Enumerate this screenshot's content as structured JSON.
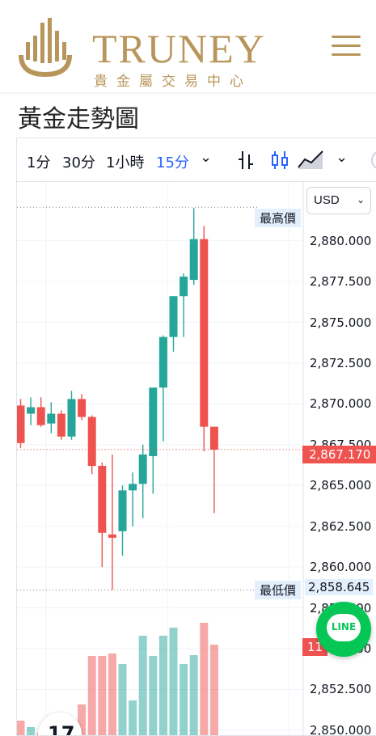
{
  "header": {
    "brand": "TRUNEY",
    "brand_sub": "貴金屬交易中心"
  },
  "page": {
    "title": "黃金走勢圖"
  },
  "toolbar": {
    "timeframes": [
      "1分",
      "30分",
      "1小時",
      "15分"
    ],
    "active_timeframe": "15分",
    "dropdown_glyph": "⌄"
  },
  "currency_select": {
    "value": "USD"
  },
  "chart_data": {
    "type": "candlestick",
    "price_axis": [
      "2,880.000",
      "2,877.500",
      "2,875.000",
      "2,872.500",
      "2,870.000",
      "2,867.500",
      "2,865.000",
      "2,862.500",
      "2,860.000",
      "2,857.500",
      "2,855.000",
      "2,852.500",
      "2,850.000"
    ],
    "ylim": [
      2849.6,
      2883.6
    ],
    "high_label": "最高價",
    "low_label": "最低價",
    "low_value": "2,858.645",
    "last_price": "2,867.170",
    "volume_tag": "11",
    "candles": [
      {
        "o": 2869.9,
        "h": 2870.3,
        "l": 2867.3,
        "c": 2867.6
      },
      {
        "o": 2869.4,
        "h": 2870.4,
        "l": 2868.7,
        "c": 2869.8
      },
      {
        "o": 2869.8,
        "h": 2870.4,
        "l": 2868.6,
        "c": 2868.7
      },
      {
        "o": 2868.8,
        "h": 2870.1,
        "l": 2868.2,
        "c": 2869.4
      },
      {
        "o": 2869.4,
        "h": 2869.6,
        "l": 2867.8,
        "c": 2868.0
      },
      {
        "o": 2868.0,
        "h": 2870.8,
        "l": 2867.8,
        "c": 2870.3
      },
      {
        "o": 2870.3,
        "h": 2870.6,
        "l": 2869.0,
        "c": 2869.2
      },
      {
        "o": 2869.2,
        "h": 2869.3,
        "l": 2865.7,
        "c": 2866.2
      },
      {
        "o": 2866.2,
        "h": 2866.4,
        "l": 2860.0,
        "c": 2862.1
      },
      {
        "o": 2862.0,
        "h": 2866.9,
        "l": 2858.6,
        "c": 2861.8
      },
      {
        "o": 2862.2,
        "h": 2865.0,
        "l": 2860.7,
        "c": 2864.7
      },
      {
        "o": 2864.7,
        "h": 2865.8,
        "l": 2862.5,
        "c": 2865.1
      },
      {
        "o": 2865.1,
        "h": 2867.5,
        "l": 2863.0,
        "c": 2866.9
      },
      {
        "o": 2866.8,
        "h": 2871.0,
        "l": 2864.5,
        "c": 2871.0
      },
      {
        "o": 2871.0,
        "h": 2874.2,
        "l": 2867.7,
        "c": 2874.1
      },
      {
        "o": 2874.1,
        "h": 2876.6,
        "l": 2873.2,
        "c": 2876.6
      },
      {
        "o": 2876.6,
        "h": 2878.0,
        "l": 2874.1,
        "c": 2877.8
      },
      {
        "o": 2877.6,
        "h": 2882.0,
        "l": 2877.3,
        "c": 2880.1
      },
      {
        "o": 2880.1,
        "h": 2880.9,
        "l": 2867.1,
        "c": 2868.6
      },
      {
        "o": 2868.6,
        "h": 2868.6,
        "l": 2863.3,
        "c": 2867.2
      }
    ],
    "volumes": [
      0.2,
      0.12,
      0.05,
      0.1,
      0.1,
      0.1,
      0.4,
      1.0,
      1.0,
      1.03,
      0.9,
      0.45,
      1.25,
      1.0,
      1.25,
      1.35,
      0.9,
      1.01,
      1.41,
      1.14
    ]
  },
  "line_button": {
    "label": "LINE"
  },
  "tv_logo": {
    "label": "17"
  },
  "colors": {
    "up": "#26a69a",
    "down": "#ef5350",
    "gold": "#b8955a",
    "active": "#2962ff"
  }
}
